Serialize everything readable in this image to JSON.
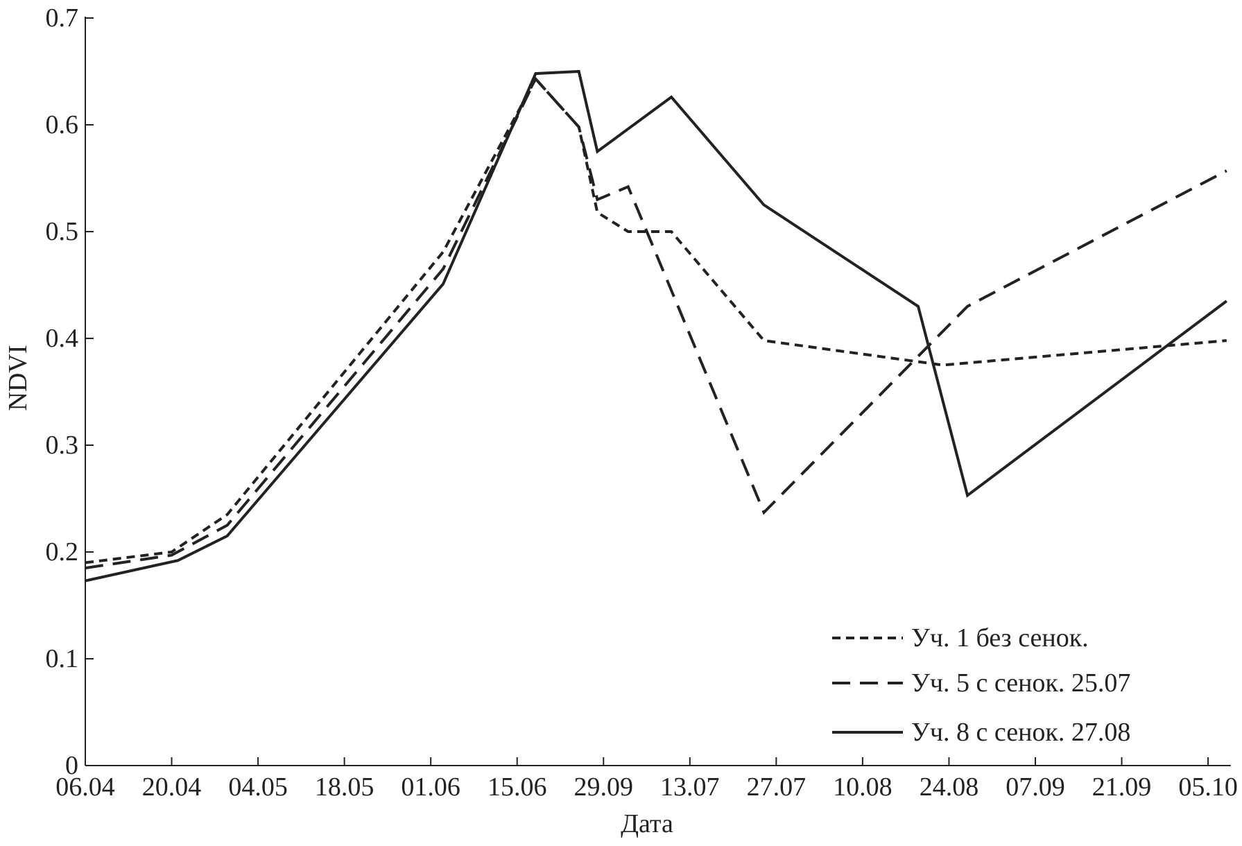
{
  "chart_data": {
    "type": "line",
    "title": "",
    "xlabel": "Дата",
    "ylabel": "NDVI",
    "ylim": [
      0,
      0.7
    ],
    "yticks": [
      "0",
      "0.1",
      "0.2",
      "0.3",
      "0.4",
      "0.5",
      "0.6",
      "0.7"
    ],
    "xtick_labels": [
      "06.04",
      "20.04",
      "04.05",
      "18.05",
      "01.06",
      "15.06",
      "29.09",
      "13.07",
      "27.07",
      "10.08",
      "24.08",
      "07.09",
      "21.09",
      "05.10"
    ],
    "xlim": [
      "06.04",
      "08.10"
    ],
    "grid": false,
    "legend_position": "bottom-right",
    "series": [
      {
        "name": "Уч. 1 без сенок.",
        "style": "short-dash",
        "color": "#222222",
        "x": [
          "06.04",
          "20.04",
          "29.04",
          "03.06",
          "18.06",
          "25.06",
          "28.06",
          "03.07",
          "10.07",
          "25.07",
          "23.08",
          "08.10"
        ],
        "y": [
          0.19,
          0.2,
          0.235,
          0.481,
          0.643,
          0.598,
          0.518,
          0.5,
          0.5,
          0.398,
          0.375,
          0.398
        ]
      },
      {
        "name": "Уч. 5 с сенок. 25.07",
        "style": "long-dash",
        "color": "#222222",
        "x": [
          "06.04",
          "20.04",
          "29.04",
          "03.06",
          "18.06",
          "25.06",
          "28.06",
          "03.07",
          "25.07",
          "27.08",
          "08.10"
        ],
        "y": [
          0.185,
          0.197,
          0.225,
          0.465,
          0.643,
          0.598,
          0.53,
          0.542,
          0.237,
          0.43,
          0.557
        ]
      },
      {
        "name": "Уч. 8 с сенок. 27.08",
        "style": "solid",
        "color": "#222222",
        "x": [
          "06.04",
          "21.04",
          "29.04",
          "03.06",
          "18.06",
          "25.06",
          "28.06",
          "10.07",
          "25.07",
          "19.08",
          "27.08",
          "08.10"
        ],
        "y": [
          0.173,
          0.192,
          0.215,
          0.451,
          0.648,
          0.65,
          0.575,
          0.626,
          0.525,
          0.43,
          0.253,
          0.435
        ]
      }
    ]
  }
}
